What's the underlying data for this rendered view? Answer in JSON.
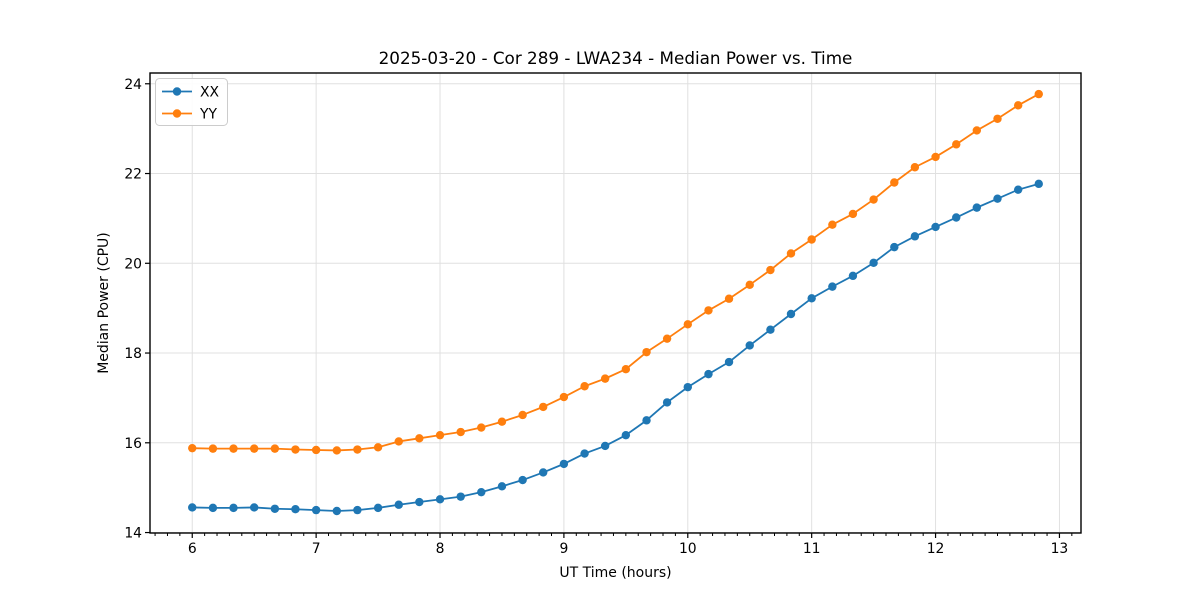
{
  "figure": {
    "background": "#ffffff",
    "frame_color": "#000000",
    "grid_color": "#e0e0e0"
  },
  "chart_data": {
    "type": "line",
    "title": "2025-03-20 - Cor 289 - LWA234 - Median Power vs. Time",
    "xlabel": "UT Time (hours)",
    "ylabel": "Median Power (CPU)",
    "xlim": [
      5.659,
      13.174
    ],
    "ylim": [
      13.99,
      24.24
    ],
    "xticks": [
      6,
      7,
      8,
      9,
      10,
      11,
      12,
      13
    ],
    "yticks": [
      14,
      16,
      18,
      20,
      22,
      24
    ],
    "x_minor_step": 0.1,
    "grid": true,
    "legend_position": "upper-left",
    "marker": "circle",
    "x": [
      6.0,
      6.167,
      6.333,
      6.5,
      6.667,
      6.833,
      7.0,
      7.167,
      7.333,
      7.5,
      7.667,
      7.833,
      8.0,
      8.167,
      8.333,
      8.5,
      8.667,
      8.833,
      9.0,
      9.167,
      9.333,
      9.5,
      9.667,
      9.833,
      10.0,
      10.167,
      10.333,
      10.5,
      10.667,
      10.833,
      11.0,
      11.167,
      11.333,
      11.5,
      11.667,
      11.833,
      12.0,
      12.167,
      12.333,
      12.5,
      12.667,
      12.833
    ],
    "series": [
      {
        "name": "XX",
        "color": "#1f77b4",
        "values": [
          14.56,
          14.55,
          14.55,
          14.56,
          14.53,
          14.52,
          14.5,
          14.48,
          14.5,
          14.55,
          14.62,
          14.68,
          14.74,
          14.8,
          14.9,
          15.03,
          15.17,
          15.34,
          15.53,
          15.76,
          15.93,
          16.17,
          16.5,
          16.9,
          17.24,
          17.53,
          17.8,
          18.17,
          18.52,
          18.87,
          19.22,
          19.48,
          19.72,
          20.01,
          20.36,
          20.6,
          20.81,
          21.02,
          21.24,
          21.44,
          21.64,
          21.77
        ]
      },
      {
        "name": "YY",
        "color": "#ff7f0e",
        "values": [
          15.88,
          15.87,
          15.87,
          15.87,
          15.87,
          15.85,
          15.84,
          15.83,
          15.85,
          15.9,
          16.03,
          16.1,
          16.17,
          16.24,
          16.34,
          16.47,
          16.62,
          16.8,
          17.02,
          17.26,
          17.43,
          17.64,
          18.02,
          18.32,
          18.64,
          18.95,
          19.21,
          19.52,
          19.85,
          20.22,
          20.53,
          20.86,
          21.1,
          21.42,
          21.8,
          22.14,
          22.37,
          22.65,
          22.96,
          23.22,
          23.52,
          23.77
        ]
      }
    ]
  }
}
